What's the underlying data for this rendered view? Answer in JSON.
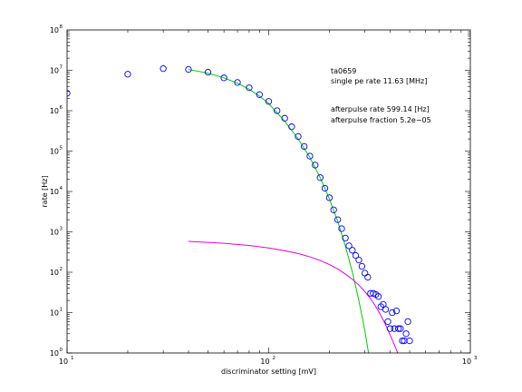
{
  "chart_data": {
    "type": "scatter",
    "title": "",
    "xlabel": "discriminator setting [mV]",
    "ylabel": "rate [Hz]",
    "xscale": "log",
    "yscale": "log",
    "xlim": [
      10,
      1000
    ],
    "ylim": [
      1,
      100000000
    ],
    "x_tick_values": [
      10,
      100,
      1000
    ],
    "x_tick_labels": [
      {
        "base": "10",
        "exp": "1"
      },
      {
        "base": "10",
        "exp": "2"
      },
      {
        "base": "10",
        "exp": "3"
      }
    ],
    "y_tick_values": [
      1,
      10,
      100,
      1000,
      10000,
      100000,
      1000000,
      10000000,
      100000000
    ],
    "y_tick_labels": [
      {
        "base": "10",
        "exp": "0"
      },
      {
        "base": "10",
        "exp": "1"
      },
      {
        "base": "10",
        "exp": "2"
      },
      {
        "base": "10",
        "exp": "3"
      },
      {
        "base": "10",
        "exp": "4"
      },
      {
        "base": "10",
        "exp": "5"
      },
      {
        "base": "10",
        "exp": "6"
      },
      {
        "base": "10",
        "exp": "7"
      },
      {
        "base": "10",
        "exp": "8"
      }
    ],
    "grid": false,
    "annotations": {
      "line1": "ta0659",
      "line2": "single pe rate 11.63 [MHz]",
      "line3": "afterpulse rate 599.14 [Hz]",
      "line4": "afterpulse fraction 5.2e−05"
    },
    "series": [
      {
        "type": "scatter",
        "marker": "circle-open",
        "color": "#0000ff",
        "x": [
          10,
          20,
          30,
          40,
          50,
          60,
          70,
          80,
          90,
          100,
          110,
          120,
          130,
          140,
          150,
          160,
          170,
          180,
          190,
          200,
          210,
          220,
          230,
          240,
          250,
          260,
          270,
          280,
          290,
          300,
          310,
          320,
          330,
          340,
          350,
          360,
          370,
          380,
          390,
          400,
          410,
          420,
          430,
          440,
          450,
          460,
          470,
          480,
          490,
          500
        ],
        "y": [
          2700000,
          8000000,
          11000000,
          10500000,
          9000000,
          6500000,
          5000000,
          3700000,
          2500000,
          1700000,
          1000000,
          650000,
          400000,
          230000,
          130000,
          75000,
          45000,
          22000,
          12000,
          7000,
          3500,
          2000,
          1200,
          700,
          450,
          350,
          260,
          200,
          140,
          95,
          75,
          30,
          30,
          28,
          25,
          14,
          16,
          12,
          6,
          4,
          10,
          4,
          11,
          4,
          4,
          2,
          2,
          3,
          6,
          2
        ]
      },
      {
        "type": "line",
        "color": "#00cc00",
        "x": [
          40,
          50,
          60,
          70,
          80,
          90,
          100,
          120,
          140,
          160,
          180,
          200,
          220,
          240,
          260,
          280,
          300,
          320
        ],
        "y": [
          10500000,
          8500000,
          6500000,
          4800000,
          3400000,
          2300000,
          1500000,
          550000,
          200000,
          70000,
          22000,
          6500,
          1800,
          450,
          100,
          20,
          3.5,
          0.5
        ]
      },
      {
        "type": "line",
        "color": "#e000e0",
        "x": [
          40,
          60,
          80,
          100,
          120,
          140,
          160,
          180,
          200,
          220,
          240,
          260,
          280,
          300,
          320,
          340,
          360,
          380,
          400,
          420,
          440,
          460
        ],
        "y": [
          580,
          520,
          460,
          400,
          340,
          290,
          240,
          195,
          155,
          120,
          90,
          67,
          48,
          33,
          22,
          14,
          8.5,
          5,
          2.8,
          1.6,
          0.9,
          0.5
        ]
      }
    ]
  }
}
